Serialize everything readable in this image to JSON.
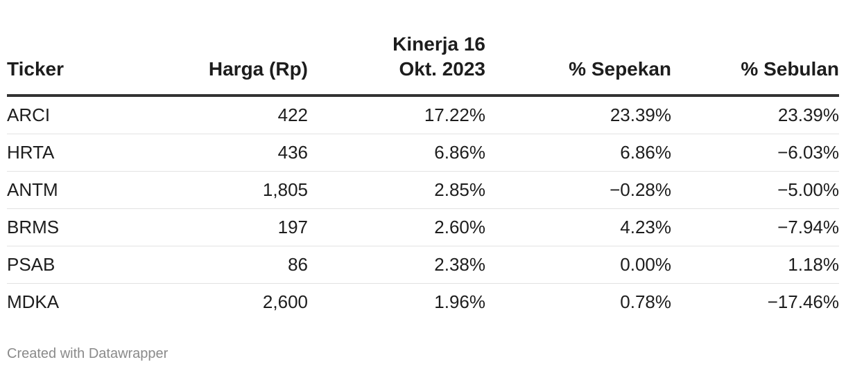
{
  "chart_data": {
    "type": "table",
    "columns": [
      "Ticker",
      "Harga (Rp)",
      "Kinerja 16 Okt. 2023",
      "% Sepekan",
      "% Sebulan"
    ],
    "header_lines": {
      "ticker": "Ticker",
      "harga": "Harga (Rp)",
      "kinerja_line1": "Kinerja 16",
      "kinerja_line2": "Okt. 2023",
      "sepekan": "% Sepekan",
      "sebulan": "% Sebulan"
    },
    "rows": [
      [
        "ARCI",
        "422",
        "17.22%",
        "23.39%",
        "23.39%"
      ],
      [
        "HRTA",
        "436",
        "6.86%",
        "6.86%",
        "−6.03%"
      ],
      [
        "ANTM",
        "1,805",
        "2.85%",
        "−0.28%",
        "−5.00%"
      ],
      [
        "BRMS",
        "197",
        "2.60%",
        "4.23%",
        "−7.94%"
      ],
      [
        "PSAB",
        "86",
        "2.38%",
        "0.00%",
        "1.18%"
      ],
      [
        "MDKA",
        "2,600",
        "1.96%",
        "0.78%",
        "−17.46%"
      ]
    ],
    "alignments": [
      "left",
      "right",
      "right",
      "right",
      "right"
    ]
  },
  "footer": {
    "credit": "Created with Datawrapper"
  }
}
